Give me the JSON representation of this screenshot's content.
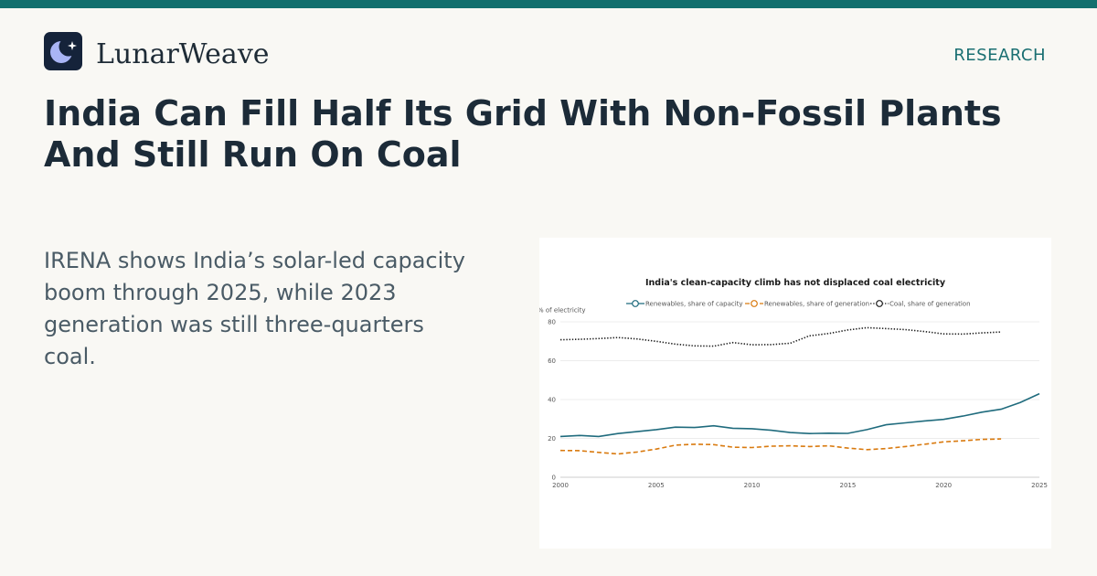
{
  "header": {
    "brand": "LunarWeave",
    "tag": "RESEARCH",
    "logo_icon": "crescent-moon-star-icon"
  },
  "headline": "India Can Fill Half Its Grid With Non-Fossil Plants And Still Run On Coal",
  "subtitle": "IRENA shows India’s solar-led capacity boom through 2025, while 2023 generation was still three-quarters coal.",
  "colors": {
    "accent": "#14706e",
    "capacity": "#1f6b7d",
    "generation": "#d97a0f",
    "coal": "#222222"
  },
  "chart_data": {
    "type": "line",
    "title": "India's clean-capacity climb has not displaced coal electricity",
    "ylabel": "% of electricity",
    "xlabel": "",
    "xlim": [
      2000,
      2025
    ],
    "ylim": [
      0,
      80
    ],
    "x_ticks": [
      2000,
      2005,
      2010,
      2015,
      2020,
      2025
    ],
    "y_ticks": [
      0,
      20,
      40,
      60,
      80
    ],
    "grid": true,
    "legend_position": "top",
    "series": [
      {
        "name": "Renewables, share of capacity",
        "style": "solid",
        "color": "#1f6b7d",
        "x": [
          2000,
          2001,
          2002,
          2003,
          2004,
          2005,
          2006,
          2007,
          2008,
          2009,
          2010,
          2011,
          2012,
          2013,
          2014,
          2015,
          2016,
          2017,
          2018,
          2019,
          2020,
          2021,
          2022,
          2023,
          2024,
          2025
        ],
        "values": [
          21,
          21.5,
          21,
          22.5,
          23.5,
          24.5,
          25.8,
          25.6,
          26.5,
          25.2,
          25,
          24.2,
          23,
          22.5,
          22.7,
          22.6,
          24.5,
          27,
          28,
          29,
          29.8,
          31.5,
          33.5,
          35,
          38.5,
          43
        ]
      },
      {
        "name": "Renewables, share of generation",
        "style": "dashed",
        "color": "#d97a0f",
        "x": [
          2000,
          2001,
          2002,
          2003,
          2004,
          2005,
          2006,
          2007,
          2008,
          2009,
          2010,
          2011,
          2012,
          2013,
          2014,
          2015,
          2016,
          2017,
          2018,
          2019,
          2020,
          2021,
          2022,
          2023
        ],
        "values": [
          13.8,
          13.7,
          12.8,
          12,
          13,
          14.5,
          16.5,
          17,
          16.8,
          15.5,
          15.3,
          16,
          16.2,
          15.8,
          16.2,
          15,
          14.2,
          14.8,
          15.8,
          17,
          18.2,
          18.8,
          19.5,
          19.7
        ]
      },
      {
        "name": "Coal, share of generation",
        "style": "dotted",
        "color": "#222222",
        "x": [
          2000,
          2001,
          2002,
          2003,
          2004,
          2005,
          2006,
          2007,
          2008,
          2009,
          2010,
          2011,
          2012,
          2013,
          2014,
          2015,
          2016,
          2017,
          2018,
          2019,
          2020,
          2021,
          2022,
          2023
        ],
        "values": [
          70.8,
          71,
          71.4,
          71.9,
          71.2,
          70,
          68.5,
          67.6,
          67.5,
          69.3,
          68.2,
          68.3,
          69,
          72.8,
          74,
          75.8,
          77,
          76.5,
          76,
          75,
          73.8,
          73.7,
          74.3,
          74.8
        ]
      }
    ]
  }
}
